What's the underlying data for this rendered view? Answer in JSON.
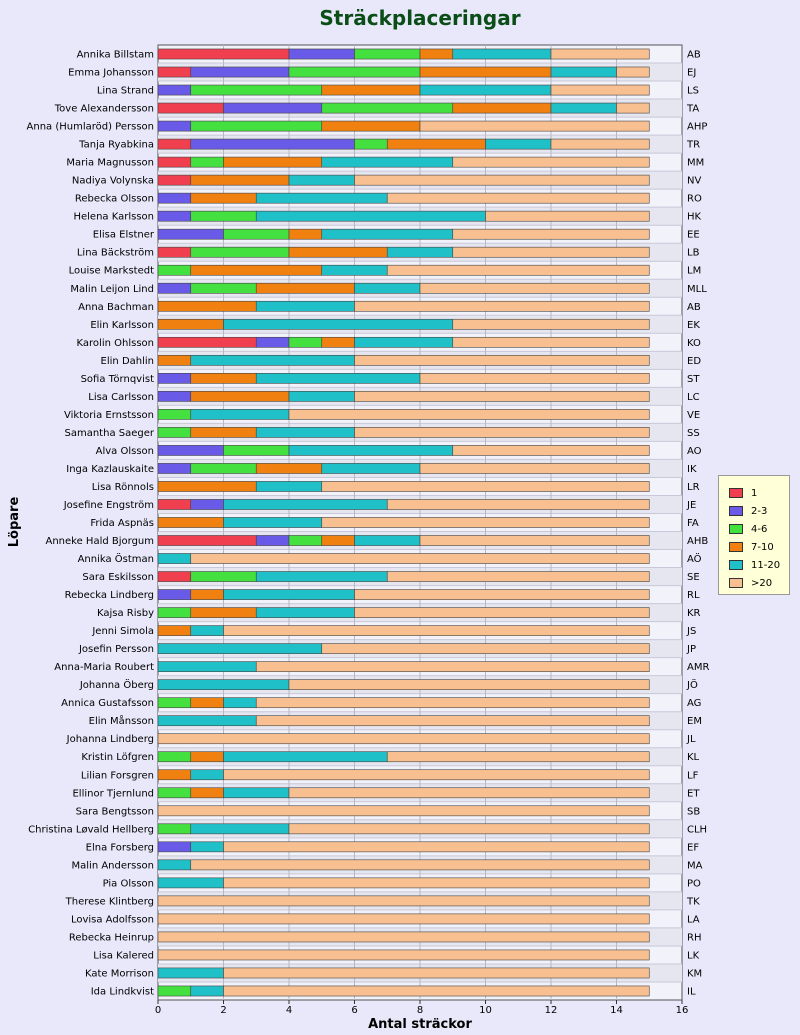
{
  "chart_data": {
    "type": "bar",
    "orientation": "horizontal",
    "stacked": true,
    "title": "Sträckplaceringar",
    "xlabel": "Antal sträckor",
    "ylabel": "Löpare",
    "xlim": [
      0,
      16
    ],
    "xticks": [
      0,
      2,
      4,
      6,
      8,
      10,
      12,
      14,
      16
    ],
    "grid": true,
    "legend_position": "right",
    "categories": [
      "Annika Billstam",
      "Emma Johansson",
      "Lina Strand",
      "Tove Alexandersson",
      "Anna (Humlaröd) Persson",
      "Tanja Ryabkina",
      "Maria Magnusson",
      "Nadiya Volynska",
      "Rebecka Olsson",
      "Helena Karlsson",
      "Elisa Elstner",
      "Lina Bäckström",
      "Louise Markstedt",
      "Malin Leijon Lind",
      "Anna Bachman",
      "Elin Karlsson",
      "Karolin Ohlsson",
      "Elin Dahlin",
      "Sofia Törnqvist",
      "Lisa Carlsson",
      "Viktoria Ernstsson",
      "Samantha Saeger",
      "Alva Olsson",
      "Inga Kazlauskaite",
      "Lisa Rönnols",
      "Josefine Engström",
      "Frida Aspnäs",
      "Anneke Hald Bjorgum",
      "Annika Östman",
      "Sara Eskilsson",
      "Rebecka Lindberg",
      "Kajsa Risby",
      "Jenni Simola",
      "Josefin Persson",
      "Anna-Maria Roubert",
      "Johanna Öberg",
      "Annica Gustafsson",
      "Elin Månsson",
      "Johanna Lindberg",
      "Kristin Löfgren",
      "Lilian Forsgren",
      "Ellinor Tjernlund",
      "Sara Bengtsson",
      "Christina Løvald Hellberg",
      "Elna Forsberg",
      "Malin Andersson",
      "Pia Olsson",
      "Therese Klintberg",
      "Lovisa Adolfsson",
      "Rebecka Heinrup",
      "Lisa Kalered",
      "Kate Morrison",
      "Ida Lindkvist"
    ],
    "right_labels": [
      "AB",
      "EJ",
      "LS",
      "TA",
      "AHP",
      "TR",
      "MM",
      "NV",
      "RO",
      "HK",
      "EE",
      "LB",
      "LM",
      "MLL",
      "AB",
      "EK",
      "KO",
      "ED",
      "ST",
      "LC",
      "VE",
      "SS",
      "AO",
      "IK",
      "LR",
      "JE",
      "FA",
      "AHB",
      "AÖ",
      "SE",
      "RL",
      "KR",
      "JS",
      "JP",
      "AMR",
      "JÖ",
      "AG",
      "EM",
      "JL",
      "KL",
      "LF",
      "ET",
      "SB",
      "CLH",
      "EF",
      "MA",
      "PO",
      "TK",
      "LA",
      "RH",
      "LK",
      "KM",
      "IL"
    ],
    "series": [
      {
        "name": "1",
        "color": "#f04050",
        "values": [
          4,
          1,
          0,
          2,
          0,
          1,
          1,
          1,
          0,
          0,
          0,
          1,
          0,
          0,
          0,
          0,
          3,
          0,
          0,
          0,
          0,
          0,
          0,
          0,
          0,
          1,
          0,
          3,
          0,
          1,
          0,
          0,
          0,
          0,
          0,
          0,
          0,
          0,
          0,
          0,
          0,
          0,
          0,
          0,
          0,
          0,
          0,
          0,
          0,
          0,
          0,
          0,
          0
        ]
      },
      {
        "name": "2-3",
        "color": "#6a5ae8",
        "values": [
          2,
          3,
          1,
          3,
          1,
          5,
          0,
          0,
          1,
          1,
          2,
          0,
          0,
          1,
          0,
          0,
          1,
          0,
          1,
          1,
          0,
          0,
          2,
          1,
          0,
          1,
          0,
          1,
          0,
          0,
          1,
          0,
          0,
          0,
          0,
          0,
          0,
          0,
          0,
          0,
          0,
          0,
          0,
          0,
          1,
          0,
          0,
          0,
          0,
          0,
          0,
          0,
          0
        ]
      },
      {
        "name": "4-6",
        "color": "#44e040",
        "values": [
          2,
          4,
          4,
          4,
          4,
          1,
          1,
          0,
          0,
          2,
          2,
          3,
          1,
          2,
          0,
          0,
          1,
          0,
          0,
          0,
          1,
          1,
          2,
          2,
          0,
          0,
          0,
          1,
          0,
          2,
          0,
          1,
          0,
          0,
          0,
          0,
          1,
          0,
          0,
          1,
          0,
          1,
          0,
          1,
          0,
          0,
          0,
          0,
          0,
          0,
          0,
          0,
          1
        ]
      },
      {
        "name": "7-10",
        "color": "#f08010",
        "values": [
          1,
          4,
          3,
          3,
          3,
          3,
          3,
          3,
          2,
          0,
          1,
          3,
          4,
          3,
          3,
          2,
          1,
          1,
          2,
          3,
          0,
          2,
          0,
          2,
          3,
          0,
          2,
          1,
          0,
          0,
          1,
          2,
          1,
          0,
          0,
          0,
          1,
          0,
          0,
          1,
          1,
          1,
          0,
          0,
          0,
          0,
          0,
          0,
          0,
          0,
          0,
          0,
          0
        ]
      },
      {
        "name": "11-20",
        "color": "#20c0c8",
        "values": [
          3,
          2,
          4,
          2,
          0,
          2,
          4,
          2,
          4,
          7,
          4,
          2,
          2,
          2,
          3,
          7,
          3,
          5,
          5,
          2,
          3,
          3,
          5,
          3,
          2,
          5,
          3,
          2,
          1,
          4,
          4,
          3,
          1,
          5,
          3,
          4,
          1,
          3,
          0,
          5,
          1,
          2,
          0,
          3,
          1,
          1,
          2,
          0,
          0,
          0,
          0,
          2,
          1
        ]
      },
      {
        "name": ">20",
        "color": "#f8c090",
        "values": [
          3,
          1,
          3,
          1,
          7,
          3,
          6,
          9,
          8,
          5,
          6,
          6,
          8,
          7,
          9,
          6,
          6,
          9,
          7,
          9,
          11,
          9,
          6,
          7,
          10,
          8,
          10,
          7,
          14,
          8,
          9,
          9,
          13,
          10,
          12,
          11,
          12,
          12,
          15,
          8,
          13,
          11,
          15,
          11,
          13,
          14,
          13,
          15,
          15,
          15,
          15,
          13,
          13
        ]
      }
    ]
  }
}
